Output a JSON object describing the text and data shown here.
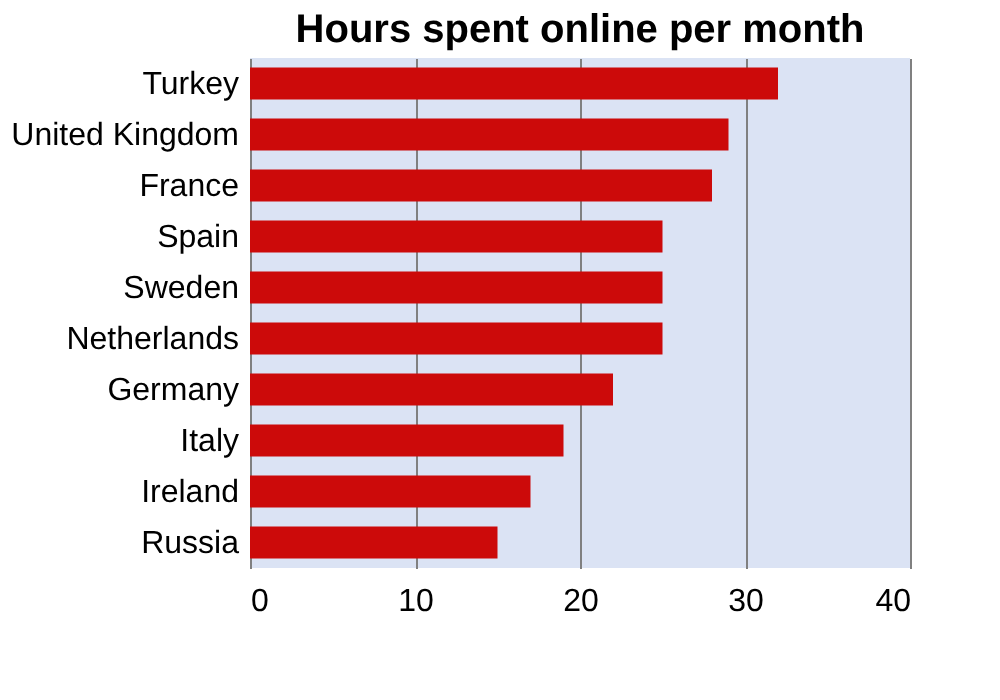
{
  "chart_data": {
    "type": "bar",
    "orientation": "horizontal",
    "title": "Hours spent online per month",
    "categories": [
      "Turkey",
      "United Kingdom",
      "France",
      "Spain",
      "Sweden",
      "Netherlands",
      "Germany",
      "Italy",
      "Ireland",
      "Russia"
    ],
    "values": [
      32,
      29,
      28,
      25,
      25,
      25,
      22,
      19,
      17,
      15
    ],
    "color": "#cc0a0a",
    "xlim": [
      0,
      40
    ],
    "xticks": [
      0,
      10,
      20,
      30,
      40
    ],
    "grid": "x"
  }
}
